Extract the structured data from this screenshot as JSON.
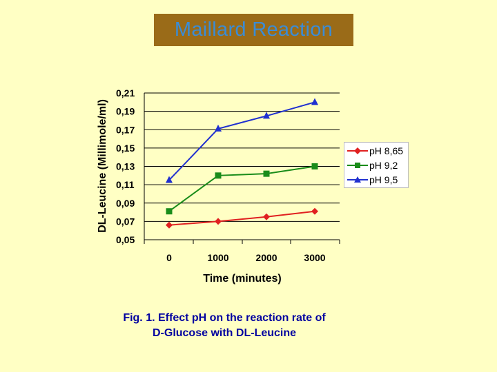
{
  "title": "Maillard Reaction",
  "caption_line1": "Fig. 1. Effect pH on the reaction rate of",
  "caption_line2": "D-Glucose with DL-Leucine",
  "chart_data": {
    "type": "line",
    "xlabel": "Time (minutes)",
    "ylabel": "DL-Leucine (Millimole/ml)",
    "categories": [
      "0",
      "1000",
      "2000",
      "3000"
    ],
    "x": [
      0,
      1000,
      2000,
      3000
    ],
    "ylim": [
      0.05,
      0.21
    ],
    "yticks": [
      "0,21",
      "0,19",
      "0,17",
      "0,15",
      "0,13",
      "0,11",
      "0,09",
      "0,07",
      "0,05"
    ],
    "yticks_values": [
      0.21,
      0.19,
      0.17,
      0.15,
      0.13,
      0.11,
      0.09,
      0.07,
      0.05
    ],
    "grid": "horizontal",
    "legend_position": "right",
    "series": [
      {
        "name": "pH 8,65",
        "color": "#e02020",
        "marker": "diamond",
        "values": [
          0.066,
          0.07,
          0.075,
          0.081
        ]
      },
      {
        "name": "pH 9,2",
        "color": "#1a8c1a",
        "marker": "square",
        "values": [
          0.081,
          0.12,
          0.122,
          0.13
        ]
      },
      {
        "name": "pH 9,5",
        "color": "#2030d0",
        "marker": "triangle",
        "values": [
          0.115,
          0.171,
          0.185,
          0.2
        ]
      }
    ]
  }
}
